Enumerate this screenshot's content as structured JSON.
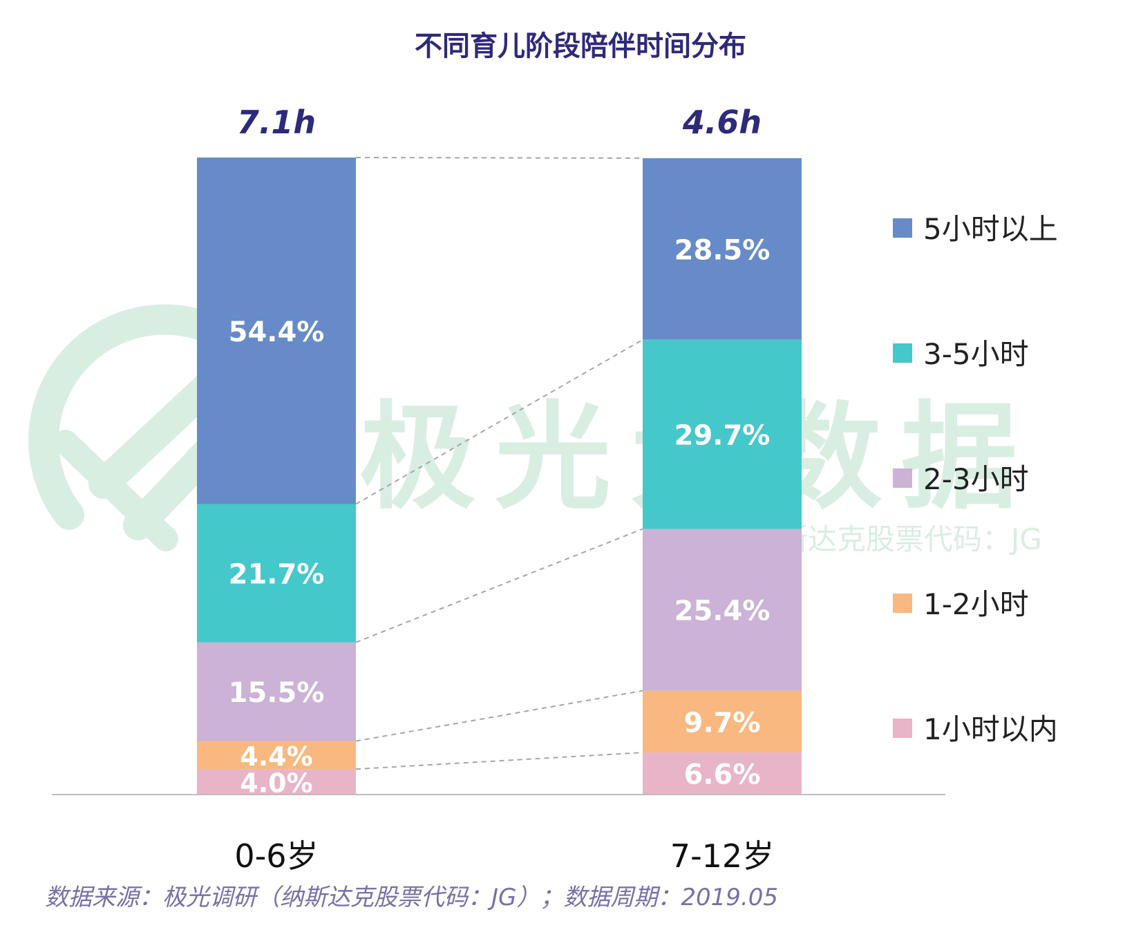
{
  "chart_data": {
    "type": "bar",
    "stacked": true,
    "normalized": true,
    "title": "不同育儿阶段陪伴时间分布",
    "categories": [
      "0-6岁",
      "7-12岁"
    ],
    "totals": [
      "7.1h",
      "4.6h"
    ],
    "series": [
      {
        "name": "1小时以内",
        "color": "#e8b4c8",
        "values": [
          4.0,
          6.6
        ],
        "labels": [
          "4.0%",
          "6.6%"
        ]
      },
      {
        "name": "1-2小时",
        "color": "#f9b87f",
        "values": [
          4.4,
          9.7
        ],
        "labels": [
          "4.4%",
          "9.7%"
        ]
      },
      {
        "name": "2-3小时",
        "color": "#cbb2d6",
        "values": [
          15.5,
          25.4
        ],
        "labels": [
          "15.5%",
          "25.4%"
        ]
      },
      {
        "name": "3-5小时",
        "color": "#45c8ca",
        "values": [
          21.7,
          29.7
        ],
        "labels": [
          "21.7%",
          "29.7%"
        ]
      },
      {
        "name": "5小时以上",
        "color": "#668bc8",
        "values": [
          54.4,
          28.5
        ],
        "labels": [
          "54.4%",
          "28.5%"
        ]
      }
    ],
    "legend_order": [
      "5小时以上",
      "3-5小时",
      "2-3小时",
      "1-2小时",
      "1小时以内"
    ],
    "legend_position": "right",
    "ylim": [
      0,
      100
    ]
  },
  "watermark": {
    "brand": "极光大数据",
    "sub": "纳斯达克股票代码：JG"
  },
  "footer": {
    "source": "数据来源：极光调研（纳斯达克股票代码：JG）；数据周期：2019.05"
  },
  "colors": {
    "title": "#2e2a7a",
    "total": "#2e2a7a",
    "source": "#7a6fa8",
    "watermark": "#d8eee1",
    "axis": "#bdbdbd",
    "connector": "#a6a6a6"
  }
}
